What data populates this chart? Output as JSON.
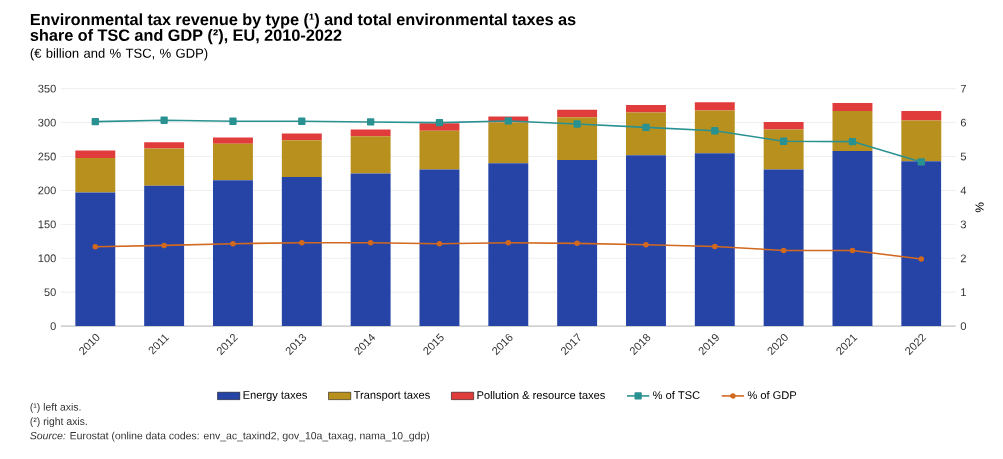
{
  "chart_data": {
    "type": "bar",
    "title": "Environmental tax revenue by type (¹) and total environmental taxes as share of TSC and GDP (²), EU, 2010-2022",
    "subtitle": "(€ billion and % TSC, % GDP)",
    "y2label": "%",
    "categories": [
      "2010",
      "2011",
      "2012",
      "2013",
      "2014",
      "2015",
      "2016",
      "2017",
      "2018",
      "2019",
      "2020",
      "2021",
      "2022"
    ],
    "stacked": true,
    "series": [
      {
        "name": "Energy taxes",
        "color": "#2644a6",
        "values": [
          197,
          207,
          215,
          220,
          225,
          231,
          240,
          245,
          252,
          255,
          231,
          258,
          243
        ]
      },
      {
        "name": "Transport taxes",
        "color": "#b8901e",
        "values": [
          51,
          55,
          54,
          54,
          55,
          57,
          60,
          63,
          63,
          63,
          59,
          59,
          60
        ]
      },
      {
        "name": "Pollution & resource taxes",
        "color": "#e03c3c",
        "values": [
          11,
          9,
          9,
          10,
          10,
          11,
          9,
          11,
          11,
          12,
          11,
          12,
          14
        ]
      },
      {
        "name": "% of TSC",
        "type": "line",
        "axis": "y2",
        "marker": "square",
        "color": "#2a9191",
        "values": [
          6.03,
          6.07,
          6.04,
          6.04,
          6.02,
          6.0,
          6.05,
          5.96,
          5.86,
          5.76,
          5.45,
          5.44,
          4.84
        ]
      },
      {
        "name": "% of GDP",
        "type": "line",
        "axis": "y2",
        "marker": "circle",
        "color": "#d2691e",
        "values": [
          2.34,
          2.38,
          2.43,
          2.46,
          2.46,
          2.43,
          2.46,
          2.44,
          2.4,
          2.35,
          2.23,
          2.23,
          1.98
        ]
      }
    ],
    "ylim": [
      0,
      350
    ],
    "yticks": [
      0,
      50,
      100,
      150,
      200,
      250,
      300,
      350
    ],
    "y2lim": [
      0,
      7
    ],
    "y2ticks": [
      0,
      1,
      2,
      3,
      4,
      5,
      6,
      7
    ],
    "grid": "y",
    "legend": "bottom",
    "annotations": [
      "(¹) left axis.",
      "(²) right axis.",
      "*Source:* Eurostat (online data codes: env_ac_taxind2, gov_10a_taxag, nama_10_gdp)"
    ]
  }
}
